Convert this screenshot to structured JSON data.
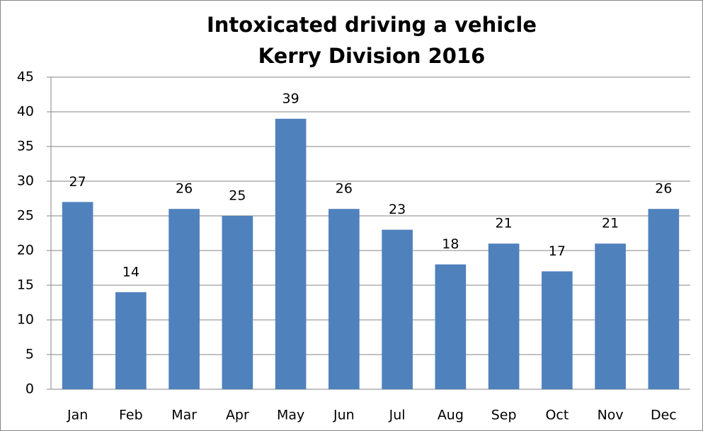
{
  "chart_data": {
    "type": "bar",
    "title": [
      "Intoxicated driving a vehicle",
      "Kerry Division 2016"
    ],
    "categories": [
      "Jan",
      "Feb",
      "Mar",
      "Apr",
      "May",
      "Jun",
      "Jul",
      "Aug",
      "Sep",
      "Oct",
      "Nov",
      "Dec"
    ],
    "values": [
      27,
      14,
      26,
      25,
      39,
      26,
      23,
      18,
      21,
      17,
      21,
      26
    ],
    "color": "#4f81bd",
    "ylim": [
      0,
      45
    ],
    "yticks": [
      0,
      5,
      10,
      15,
      20,
      25,
      30,
      35,
      40,
      45
    ],
    "grid": true
  }
}
